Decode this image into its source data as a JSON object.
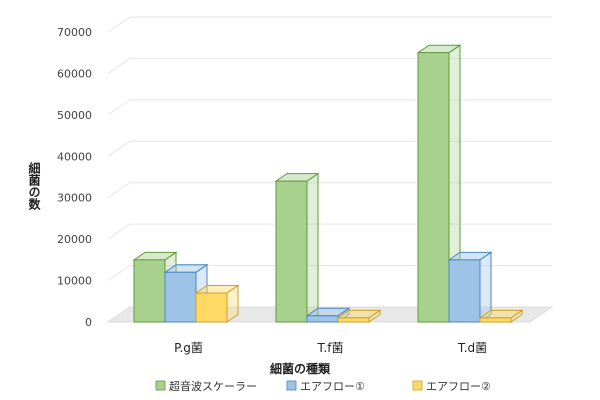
{
  "chart_data": {
    "type": "bar",
    "three_d": true,
    "categories": [
      "P.g菌",
      "T.f菌",
      "T.d菌"
    ],
    "series": [
      {
        "name": "超音波スケーラー",
        "values": [
          15000,
          34000,
          65000
        ],
        "face_color": "#a9d18e",
        "edge_color": "#5f9a3e"
      },
      {
        "name": "エアフロー①",
        "values": [
          12000,
          1500,
          15000
        ],
        "face_color": "#9dc3e6",
        "edge_color": "#4a86c8"
      },
      {
        "name": "エアフロー②",
        "values": [
          7000,
          1000,
          1000
        ],
        "face_color": "#ffd966",
        "edge_color": "#c9a227"
      }
    ],
    "xlabel": "細菌の種類",
    "ylabel": "細菌の数",
    "ylim": [
      0,
      70000
    ],
    "yticks": [
      "0",
      "10000",
      "20000",
      "30000",
      "40000",
      "50000",
      "60000",
      "70000"
    ],
    "grid": true,
    "legend_position": "bottom"
  }
}
